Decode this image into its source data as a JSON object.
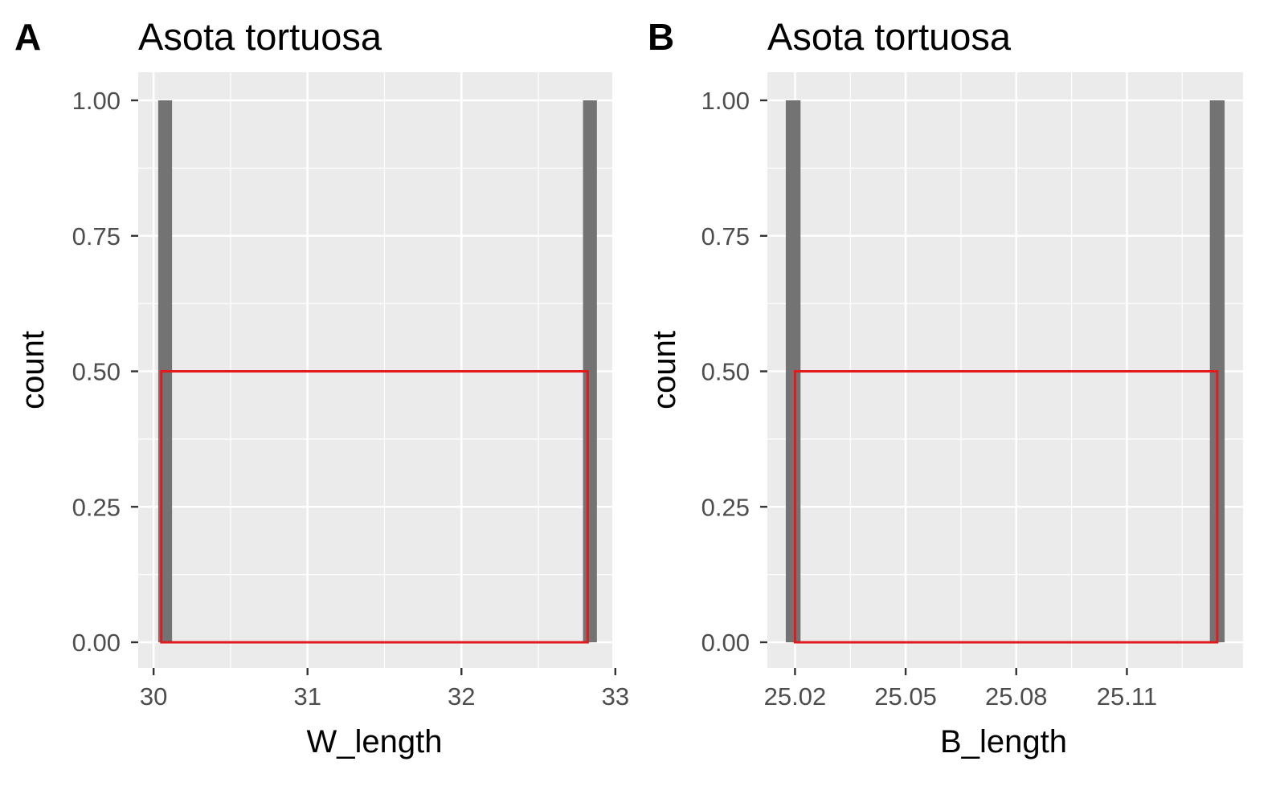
{
  "chart_data": [
    {
      "panel_tag": "A",
      "type": "histogram",
      "title": "Asota tortuosa",
      "xlabel": "W_length",
      "ylabel": "count",
      "xlim": [
        29.9,
        32.98
      ],
      "ylim": [
        0,
        1
      ],
      "x_ticks": [
        30,
        31,
        32,
        33
      ],
      "x_minor_ticks": [
        30.5,
        31.5,
        32.5
      ],
      "y_ticks": [
        "0.00",
        "0.25",
        "0.50",
        "0.75",
        "1.00"
      ],
      "y_minor_ticks": [
        0.125,
        0.375,
        0.625,
        0.875
      ],
      "grid": true,
      "bins": [
        {
          "x0": 30.03,
          "x1": 30.12,
          "count": 1
        },
        {
          "x0": 32.79,
          "x1": 32.88,
          "count": 1
        }
      ],
      "bar_color": "#737373",
      "highlight": {
        "x0": 30.05,
        "x1": 32.82,
        "y0": 0,
        "y1": 0.5,
        "color": "#e31a1c"
      }
    },
    {
      "panel_tag": "B",
      "type": "histogram",
      "title": "Asota tortuosa",
      "xlabel": "B_length",
      "ylabel": "count",
      "xlim": [
        25.0125,
        25.1415
      ],
      "ylim": [
        0,
        1
      ],
      "x_ticks": [
        25.02,
        25.05,
        25.08,
        25.11
      ],
      "x_tick_labels": [
        "25.02",
        "25.05",
        "25.08",
        "25.11"
      ],
      "x_minor_ticks": [
        25.035,
        25.065,
        25.095,
        25.125
      ],
      "y_ticks": [
        "0.00",
        "0.25",
        "0.50",
        "0.75",
        "1.00"
      ],
      "y_minor_ticks": [
        0.125,
        0.375,
        0.625,
        0.875
      ],
      "grid": true,
      "bins": [
        {
          "x0": 25.0175,
          "x1": 25.0215,
          "count": 1
        },
        {
          "x0": 25.1325,
          "x1": 25.1365,
          "count": 1
        }
      ],
      "bar_color": "#737373",
      "highlight": {
        "x0": 25.02,
        "x1": 25.1345,
        "y0": 0,
        "y1": 0.5,
        "color": "#e31a1c"
      }
    }
  ]
}
